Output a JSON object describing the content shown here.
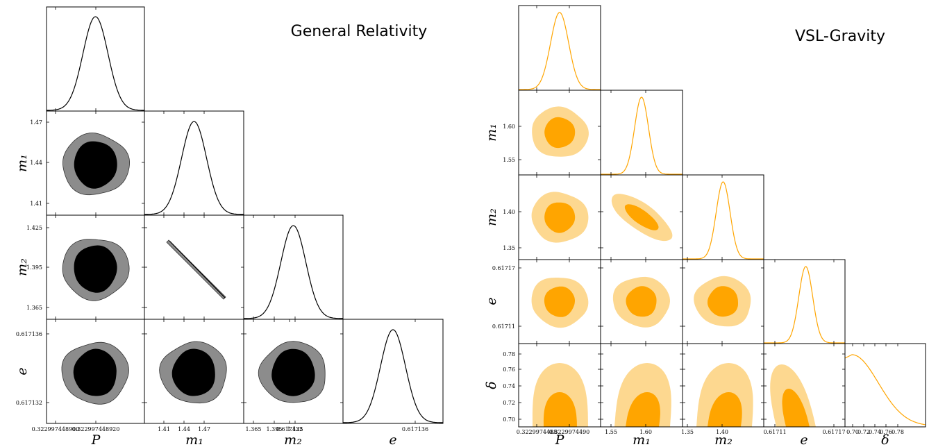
{
  "chart_data": [
    {
      "type": "corner",
      "title": "General Relativity",
      "parameters": [
        {
          "label": "P",
          "ticks": [
            "0.322997448900",
            "0.322997448920"
          ]
        },
        {
          "label": "m₁",
          "ticks": [
            "1.41",
            "1.44",
            "1.47"
          ]
        },
        {
          "label": "m₂",
          "ticks": [
            "1.365",
            "1.395",
            "1.425"
          ]
        },
        {
          "label": "e",
          "ticks": [
            "0.617132",
            "0.617136"
          ]
        }
      ],
      "colors": {
        "inner": "#000000",
        "outer": "#8c8c8c",
        "line": "#000000"
      }
    },
    {
      "type": "corner",
      "title": "VSL-Gravity",
      "parameters": [
        {
          "label": "P",
          "ticks": [
            "0.3229974488",
            "0.3229974490"
          ]
        },
        {
          "label": "m₁",
          "ticks": [
            "1.55",
            "1.60"
          ]
        },
        {
          "label": "m₂",
          "ticks": [
            "1.35",
            "1.40"
          ]
        },
        {
          "label": "e",
          "ticks": [
            "0.61711",
            "0.61717"
          ]
        },
        {
          "label": "δ",
          "ticks": [
            "0.70",
            "0.72",
            "0.74",
            "0.76",
            "0.78"
          ]
        }
      ],
      "colors": {
        "inner": "#ffa500",
        "outer": "#fdd890",
        "line": "#ffa500"
      }
    }
  ]
}
